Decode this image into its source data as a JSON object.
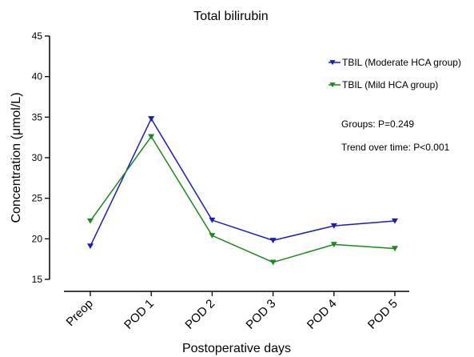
{
  "chart_data": {
    "type": "line",
    "title": "Total bilirubin",
    "xlabel": "Postoperative days",
    "ylabel": "Concentration (μmol/L)",
    "ylim": [
      15,
      45
    ],
    "yticks": [
      "15",
      "20",
      "25",
      "30",
      "35",
      "40",
      "45"
    ],
    "categories": [
      "Preop",
      "POD 1",
      "POD 2",
      "POD 3",
      "POD 4",
      "POD 5"
    ],
    "grid": false,
    "legend_position": "top-right",
    "series": [
      {
        "name": "TBIL (Moderate HCA group)",
        "color": "#1a1acc",
        "marker": "triangle-down",
        "values": [
          19.1,
          34.8,
          22.3,
          19.8,
          21.6,
          22.2
        ]
      },
      {
        "name": "TBIL (Mild HCA group)",
        "color": "#1a8a1a",
        "marker": "triangle-down",
        "values": [
          22.2,
          32.6,
          20.4,
          17.1,
          19.3,
          18.8
        ]
      }
    ],
    "annotations": [
      "Groups: P=0.249",
      "Trend over time: P<0.001"
    ]
  }
}
